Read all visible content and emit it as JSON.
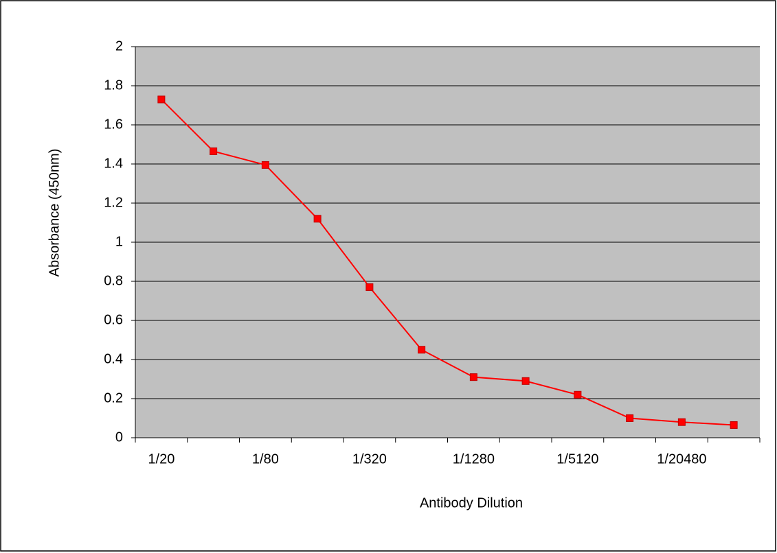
{
  "chart_data": {
    "type": "line",
    "x_label": "Antibody Dilution",
    "y_label": "Absorbance (450nm)",
    "categories": [
      "1/20",
      null,
      "1/80",
      null,
      "1/320",
      null,
      "1/1280",
      null,
      "1/5120",
      null,
      "1/20480",
      null
    ],
    "series": [
      {
        "color": "#ff0000",
        "values": [
          1.73,
          1.465,
          1.395,
          1.12,
          0.77,
          0.45,
          0.31,
          0.29,
          0.22,
          0.1,
          0.08,
          0.065
        ]
      }
    ],
    "ylim": [
      0,
      2
    ],
    "yticks": [
      0,
      0.2,
      0.4,
      0.6,
      0.8,
      1,
      1.2,
      1.4,
      1.6,
      1.8,
      2
    ],
    "grid": true,
    "plot_background": "#c0c0c0"
  }
}
